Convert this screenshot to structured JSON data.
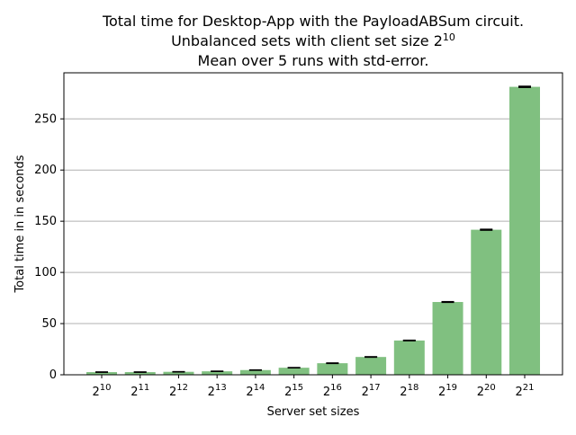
{
  "chart_data": {
    "type": "bar",
    "title_lines": [
      {
        "text": "Total time for Desktop-App with the PayloadABSum circuit.",
        "sup": ""
      },
      {
        "text": "Unbalanced sets with client set size 2",
        "sup": "10"
      },
      {
        "text": "Mean over 5 runs with std-error.",
        "sup": ""
      }
    ],
    "xlabel": "Server set sizes",
    "ylabel": "Total time in in seconds",
    "categories": [
      {
        "base": "2",
        "exp": "10"
      },
      {
        "base": "2",
        "exp": "11"
      },
      {
        "base": "2",
        "exp": "12"
      },
      {
        "base": "2",
        "exp": "13"
      },
      {
        "base": "2",
        "exp": "14"
      },
      {
        "base": "2",
        "exp": "15"
      },
      {
        "base": "2",
        "exp": "16"
      },
      {
        "base": "2",
        "exp": "17"
      },
      {
        "base": "2",
        "exp": "18"
      },
      {
        "base": "2",
        "exp": "19"
      },
      {
        "base": "2",
        "exp": "20"
      },
      {
        "base": "2",
        "exp": "21"
      }
    ],
    "values": [
      2.6,
      2.6,
      2.9,
      3.4,
      4.6,
      6.9,
      11.3,
      17.4,
      33.5,
      71.1,
      141.7,
      281.3
    ],
    "errors": [
      0.1,
      0.1,
      0.1,
      0.1,
      0.1,
      0.1,
      0.2,
      0.2,
      0.2,
      0.3,
      0.4,
      0.5
    ],
    "ylim": [
      0,
      295
    ],
    "yticks": [
      0,
      50,
      100,
      150,
      200,
      250
    ],
    "grid": "y",
    "bar_color": "#80c080",
    "error_color": "#000000",
    "grid_color": "#b0b0b0"
  }
}
